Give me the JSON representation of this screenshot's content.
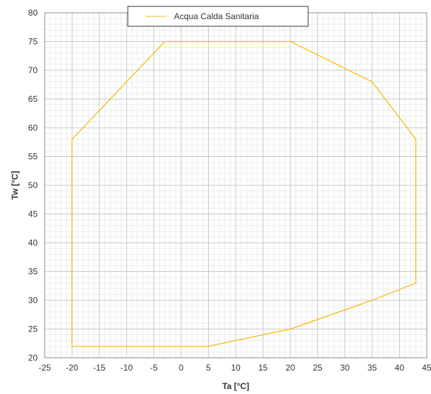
{
  "chart_data": {
    "type": "line",
    "title": "",
    "xlabel": "Ta [°C]",
    "ylabel": "Tw [°C]",
    "xlim": [
      -25,
      45
    ],
    "ylim": [
      20,
      80
    ],
    "x_ticks": [
      -25,
      -20,
      -15,
      -10,
      -5,
      0,
      5,
      10,
      15,
      20,
      25,
      30,
      35,
      40,
      45
    ],
    "y_ticks": [
      20,
      25,
      30,
      35,
      40,
      45,
      50,
      55,
      60,
      65,
      70,
      75,
      80
    ],
    "x_minor_step": 1,
    "y_minor_step": 1,
    "grid": true,
    "legend_position": "top-center",
    "series": [
      {
        "name": "Acqua Calda Sanitaria",
        "color": "#f5b800",
        "points": [
          {
            "x": -20,
            "y": 22
          },
          {
            "x": -20,
            "y": 58
          },
          {
            "x": -3,
            "y": 75
          },
          {
            "x": 20,
            "y": 75
          },
          {
            "x": 35,
            "y": 68
          },
          {
            "x": 43,
            "y": 58
          },
          {
            "x": 43,
            "y": 33
          },
          {
            "x": 35,
            "y": 30
          },
          {
            "x": 20,
            "y": 25
          },
          {
            "x": 5,
            "y": 22
          },
          {
            "x": -20,
            "y": 22
          }
        ]
      }
    ]
  }
}
